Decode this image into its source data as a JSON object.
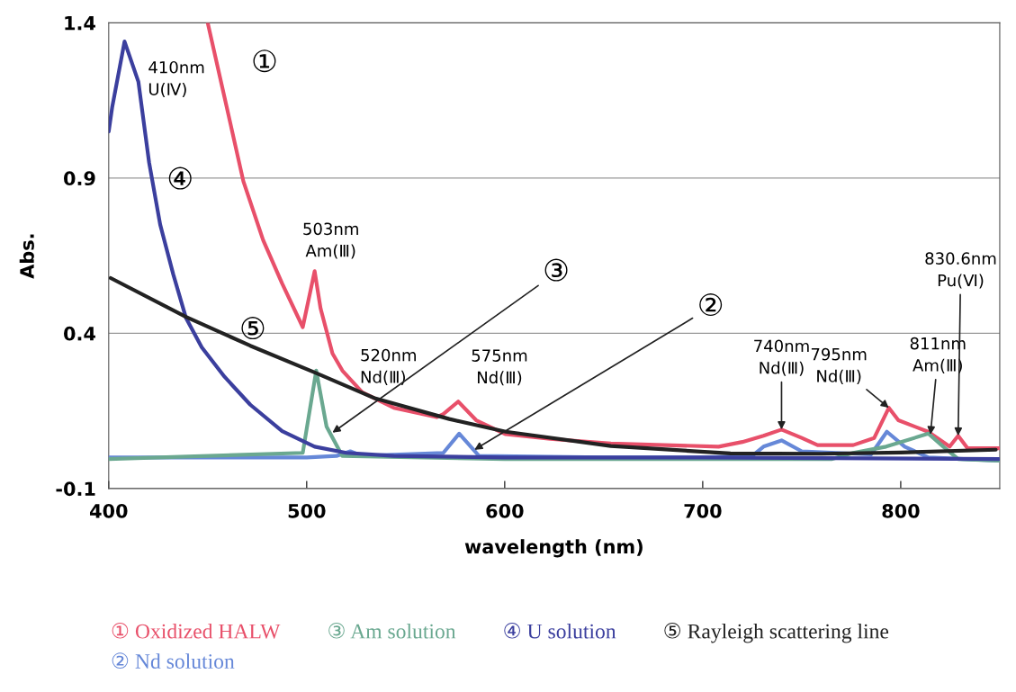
{
  "chart_data": {
    "type": "line",
    "xlabel": "wavelength (nm)",
    "ylabel": "Abs.",
    "xlim": [
      400,
      850
    ],
    "ylim": [
      -0.1,
      1.4
    ],
    "xticks": [
      400,
      500,
      600,
      700,
      800
    ],
    "yticks": [
      -0.1,
      0.4,
      0.9,
      1.4
    ],
    "grid": "y",
    "legend": "bottom",
    "marker": "none",
    "line_style": "solid",
    "series": [
      {
        "name": "① Oxidized HALW",
        "color": "#e8506a",
        "x": [
          450,
          458.5,
          468,
          478,
          487.6,
          498,
          504,
          507,
          513,
          518,
          528,
          544,
          565.6,
          569,
          576.5,
          585.6,
          600.5,
          623,
          653.6,
          708,
          720,
          730.7,
          739.8,
          750,
          758,
          776,
          786.6,
          794,
          798.8,
          813.8,
          824.7,
          829,
          833.7,
          849.6
        ],
        "values": [
          1.4,
          1.16,
          0.89,
          0.7,
          0.56,
          0.42,
          0.6,
          0.48,
          0.335,
          0.28,
          0.21,
          0.16,
          0.13,
          0.14,
          0.18,
          0.12,
          0.075,
          0.06,
          0.045,
          0.035,
          0.05,
          0.07,
          0.09,
          0.063,
          0.04,
          0.04,
          0.063,
          0.16,
          0.12,
          0.083,
          0.035,
          0.07,
          0.03,
          0.03
        ]
      },
      {
        "name": "② Nd solution",
        "color": "#6688d8",
        "x": [
          400,
          500,
          515,
          522,
          528,
          569,
          577,
          587,
          650,
          700,
          725,
          730.7,
          739.8,
          750,
          785,
          793,
          802,
          814,
          849.6
        ],
        "values": [
          0.0,
          0.0,
          0.005,
          0.02,
          0.005,
          0.015,
          0.077,
          0.005,
          0.0,
          0.0,
          0.005,
          0.035,
          0.055,
          0.02,
          0.01,
          0.083,
          0.035,
          0.0,
          -0.01
        ]
      },
      {
        "name": "③ Am solution",
        "color": "#6aa890",
        "x": [
          400,
          498,
          504.8,
          510,
          518,
          600,
          700,
          765,
          776,
          792.6,
          814,
          821.5,
          829,
          849.6
        ],
        "values": [
          -0.005,
          0.015,
          0.28,
          0.1,
          0.005,
          -0.005,
          -0.005,
          -0.005,
          0.015,
          0.035,
          0.077,
          0.035,
          -0.005,
          -0.01
        ]
      },
      {
        "name": "④ U solution",
        "color": "#3b3f9e",
        "x": [
          400,
          401.8,
          408,
          415,
          420.4,
          426,
          432.6,
          439,
          447,
          458.5,
          471.5,
          487.6,
          504,
          520,
          544,
          600,
          700,
          849.6
        ],
        "values": [
          1.05,
          1.13,
          1.34,
          1.21,
          0.95,
          0.75,
          0.59,
          0.45,
          0.355,
          0.26,
          0.17,
          0.085,
          0.035,
          0.015,
          0.005,
          0.0,
          0.0,
          -0.005
        ]
      },
      {
        "name": "⑤ Rayleigh scattering line",
        "color": "#222222",
        "x": [
          401,
          439,
          471.5,
          504,
          534.7,
          572,
          600.5,
          653.6,
          714,
          760,
          800,
          848
        ],
        "values": [
          0.578,
          0.453,
          0.36,
          0.274,
          0.19,
          0.124,
          0.083,
          0.037,
          0.013,
          0.012,
          0.016,
          0.025
        ]
      }
    ],
    "annotations": [
      "410nm\nU(Ⅳ)",
      {
        "text": "①",
        "x": 458.5,
        "y": 1.16
      },
      {
        "text": "④",
        "x": 426,
        "y": 0.75
      },
      {
        "text": "503nm\nAm(Ⅲ)",
        "x": 504,
        "y": 0.6
      },
      {
        "text": "⑤",
        "x": 471.5,
        "y": 0.36
      },
      "520nm\nNd(Ⅲ)",
      {
        "text": "③",
        "x": 513,
        "y": 0.08
      },
      {
        "text": "575nm\nNd(Ⅲ)",
        "x": 576.5,
        "y": 0.18
      },
      {
        "text": "②",
        "x": 584.7,
        "y": 0.025
      },
      {
        "text": "740nm\nNd(Ⅲ)",
        "x": 739.8,
        "y": 0.09
      },
      {
        "text": "795nm\nNd(Ⅲ)",
        "x": 794,
        "y": 0.16
      },
      {
        "text": "811nm\nAm(Ⅲ)",
        "x": 815,
        "y": 0.074
      },
      {
        "text": "830.6nm\nPu(Ⅵ)",
        "x": 829,
        "y": 0.07
      }
    ]
  }
}
